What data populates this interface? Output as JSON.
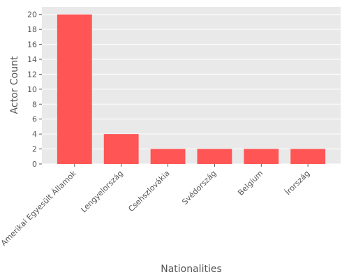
{
  "chart_data": {
    "type": "bar",
    "categories": [
      "Amerikai Egyesült Államok",
      "Lengyelország",
      "Csehszlovákia",
      "Svédország",
      "Belgium",
      "Írország"
    ],
    "values": [
      20,
      4,
      2,
      2,
      2,
      2
    ],
    "xlabel": "Nationalities",
    "ylabel": "Actor Count",
    "ylim": [
      0,
      21
    ],
    "yticks": [
      0,
      2,
      4,
      6,
      8,
      10,
      12,
      14,
      16,
      18,
      20
    ],
    "grid": true,
    "bar_color": "#ff5555",
    "background_color": "#e9e9e9",
    "grid_color": "#ffffff"
  }
}
